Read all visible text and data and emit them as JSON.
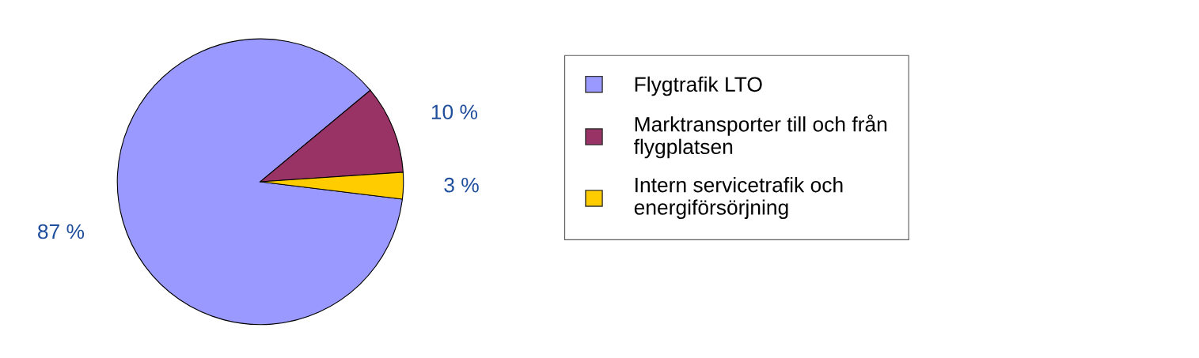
{
  "chart_data": {
    "type": "pie",
    "categories": [
      "Flygtrafik LTO",
      "Marktransporter till och från\nflygplatsen",
      "Intern servicetrafik och\nenergiförsörjning"
    ],
    "values": [
      87,
      10,
      3
    ],
    "colors": [
      "#9999ff",
      "#993366",
      "#ffcc00"
    ],
    "value_labels": [
      "87 %",
      "10 %",
      "3 %"
    ],
    "legend": "right"
  }
}
